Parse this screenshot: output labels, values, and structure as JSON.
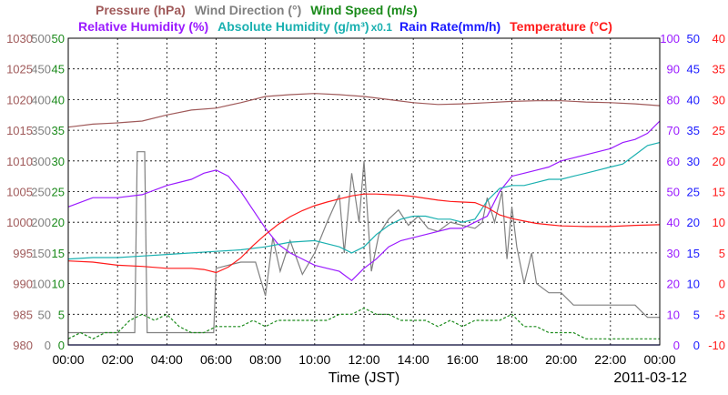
{
  "chart_data": {
    "type": "line",
    "date_label": "2011-03-12",
    "xlabel": "Time (JST)",
    "x_ticks": [
      "00:00",
      "02:00",
      "04:00",
      "06:00",
      "08:00",
      "10:00",
      "12:00",
      "14:00",
      "16:00",
      "18:00",
      "20:00",
      "22:00",
      "00:00"
    ],
    "x_range_hours": [
      0,
      24
    ],
    "legend_row1": [
      {
        "id": "pressure",
        "text": "Pressure (hPa)",
        "color": "#a05a5a"
      },
      {
        "id": "wdir",
        "text": "Wind Direction (°)",
        "color": "#808080"
      },
      {
        "id": "wspd",
        "text": "Wind Speed (m/s)",
        "color": "#1a8a1a"
      }
    ],
    "legend_row2": [
      {
        "id": "rh",
        "text": "Relative Humidity (%)",
        "color": "#9a1aff"
      },
      {
        "id": "ah",
        "text": "Absolute Humidity (g/m³)",
        "color": "#1ab0b0",
        "note": "x0.1"
      },
      {
        "id": "rain",
        "text": "Rain Rate(mm/h)",
        "color": "#1a1aff"
      },
      {
        "id": "temp",
        "text": "Temperature (°C)",
        "color": "#ff1a1a"
      }
    ],
    "axes": [
      {
        "id": "pressure",
        "side": "left",
        "color": "#a05a5a",
        "range": [
          980,
          1030
        ],
        "ticks": [
          "980",
          "985",
          "990",
          "995",
          "1000",
          "1005",
          "1010",
          "1015",
          "1020",
          "1025",
          "1030"
        ]
      },
      {
        "id": "wdir",
        "side": "left",
        "color": "#808080",
        "range": [
          0,
          500
        ],
        "ticks": [
          "0",
          "50",
          "100",
          "150",
          "200",
          "250",
          "300",
          "350",
          "400",
          "450",
          "500"
        ]
      },
      {
        "id": "wspd",
        "side": "left",
        "color": "#1a8a1a",
        "range": [
          0,
          50
        ],
        "ticks": [
          "0",
          "5",
          "10",
          "15",
          "20",
          "25",
          "30",
          "35",
          "40",
          "45",
          "50"
        ]
      },
      {
        "id": "rh",
        "side": "right",
        "color": "#9a1aff",
        "range": [
          0,
          100
        ],
        "ticks": [
          "0",
          "10",
          "20",
          "30",
          "40",
          "50",
          "60",
          "70",
          "80",
          "90",
          "100"
        ]
      },
      {
        "id": "rain",
        "side": "right",
        "color": "#1a1aff",
        "range": [
          0,
          50
        ],
        "ticks": [
          "0",
          "5",
          "10",
          "15",
          "20",
          "25",
          "30",
          "35",
          "40",
          "45",
          "50"
        ]
      },
      {
        "id": "temp",
        "side": "right",
        "color": "#ff1a1a",
        "range": [
          -10,
          40
        ],
        "ticks": [
          "-10",
          "-5",
          "0",
          "5",
          "10",
          "15",
          "20",
          "25",
          "30",
          "35",
          "40"
        ]
      }
    ],
    "series": [
      {
        "name": "Pressure",
        "axis": "pressure",
        "color": "#a05a5a",
        "x": [
          0,
          1,
          2,
          3,
          4,
          5,
          6,
          7,
          8,
          9,
          10,
          11,
          12,
          13,
          14,
          15,
          16,
          17,
          18,
          19,
          20,
          21,
          22,
          23,
          24
        ],
        "values": [
          1015.5,
          1016,
          1016.2,
          1016.5,
          1017.5,
          1018.3,
          1018.6,
          1019.5,
          1020.5,
          1020.8,
          1021,
          1020.8,
          1020.5,
          1020,
          1019.5,
          1019.2,
          1019.3,
          1019.5,
          1019.7,
          1019.8,
          1019.8,
          1019.6,
          1019.5,
          1019.3,
          1019
        ]
      },
      {
        "name": "Wind Direction",
        "axis": "wdir",
        "color": "#808080",
        "x": [
          0,
          1,
          2,
          2.7,
          2.8,
          3.1,
          3.2,
          4,
          5,
          5.9,
          6,
          7,
          7.6,
          8,
          8.3,
          8.6,
          9,
          9.5,
          10,
          10.5,
          11,
          11.2,
          11.5,
          11.8,
          12,
          12.3,
          12.6,
          13,
          13.4,
          13.8,
          14.2,
          14.6,
          15,
          15.5,
          16,
          16.5,
          16.8,
          17,
          17.3,
          17.6,
          17.8,
          18,
          18.2,
          18.5,
          18.8,
          19,
          19.5,
          20,
          20.5,
          21,
          21.5,
          22,
          22.5,
          23,
          23.5,
          24
        ],
        "values": [
          20,
          20,
          20,
          20,
          315,
          315,
          20,
          20,
          20,
          20,
          125,
          135,
          135,
          80,
          175,
          120,
          170,
          115,
          150,
          200,
          245,
          150,
          280,
          200,
          300,
          120,
          180,
          205,
          220,
          195,
          210,
          190,
          185,
          200,
          195,
          190,
          200,
          240,
          200,
          250,
          140,
          225,
          160,
          100,
          150,
          100,
          85,
          85,
          65,
          65,
          65,
          65,
          65,
          65,
          45,
          45
        ]
      },
      {
        "name": "Wind Speed",
        "axis": "wspd",
        "color": "#1a8a1a",
        "x": [
          0,
          0.5,
          1,
          1.5,
          2,
          2.5,
          3,
          3.5,
          4,
          4.5,
          5,
          5.5,
          6,
          6.5,
          7,
          7.5,
          8,
          8.5,
          9,
          9.5,
          10,
          10.5,
          11,
          11.5,
          12,
          12.5,
          13,
          13.5,
          14,
          14.5,
          15,
          15.5,
          16,
          16.5,
          17,
          17.5,
          18,
          18.5,
          19,
          19.5,
          20,
          20.5,
          21,
          21.5,
          22,
          22.5,
          23,
          23.5,
          24
        ],
        "values": [
          1,
          2,
          1,
          2,
          2,
          4,
          5,
          4,
          5,
          3,
          2,
          2,
          3,
          3,
          3,
          4,
          3,
          4,
          4,
          4,
          4,
          4,
          5,
          5,
          6,
          5,
          5,
          4,
          4,
          4,
          3,
          4,
          3,
          4,
          4,
          4,
          5,
          3,
          3,
          2,
          2,
          2,
          1,
          1,
          1,
          1,
          1,
          1,
          1
        ]
      },
      {
        "name": "Relative Humidity",
        "axis": "rh",
        "color": "#9a1aff",
        "x": [
          0,
          1,
          2,
          3,
          4,
          5,
          5.5,
          6,
          6.5,
          7,
          7.5,
          8,
          8.5,
          9,
          9.5,
          10,
          10.5,
          11,
          11.5,
          12,
          12.5,
          13,
          13.5,
          14,
          14.5,
          15,
          15.5,
          16,
          16.5,
          17,
          17.5,
          18,
          18.5,
          19,
          19.5,
          20,
          20.5,
          21,
          21.5,
          22,
          22.5,
          23,
          23.5,
          24
        ],
        "values": [
          45,
          48,
          48,
          49,
          52,
          54,
          56,
          57,
          55,
          50,
          44,
          38,
          33,
          30,
          28,
          26,
          25,
          24,
          21,
          25,
          28,
          32,
          34,
          35,
          36,
          37,
          38,
          38,
          40,
          42,
          50,
          55,
          56,
          57,
          58,
          60,
          61,
          62,
          63,
          64,
          66,
          67,
          69,
          73
        ]
      },
      {
        "name": "Absolute Humidity x0.1",
        "axis": "rh",
        "color": "#1ab0b0",
        "x": [
          0,
          1,
          2,
          3,
          4,
          5,
          6,
          7,
          8,
          9,
          10,
          10.5,
          11,
          11.5,
          12,
          12.5,
          13,
          13.5,
          14,
          14.5,
          15,
          15.5,
          16,
          16.5,
          17,
          17.5,
          18,
          18.5,
          19,
          19.5,
          20,
          20.5,
          21,
          21.5,
          22,
          22.5,
          23,
          23.5,
          24
        ],
        "values": [
          28,
          28.5,
          28.5,
          29,
          29.5,
          30,
          30.5,
          31,
          32,
          33.5,
          34,
          33,
          32,
          30,
          32,
          36,
          39,
          41,
          42,
          42,
          41,
          41,
          40,
          41,
          47,
          51,
          52,
          52,
          53,
          54,
          54,
          55,
          56,
          57,
          58,
          59,
          62,
          65,
          66
        ]
      },
      {
        "name": "Rain Rate",
        "axis": "rain",
        "color": "#1a1aff",
        "x": [
          0,
          24
        ],
        "values": [
          0,
          0
        ]
      },
      {
        "name": "Temperature",
        "axis": "temp",
        "color": "#ff1a1a",
        "x": [
          0,
          1,
          2,
          3,
          4,
          5,
          5.5,
          6,
          6.5,
          7,
          7.5,
          8,
          8.5,
          9,
          9.5,
          10,
          10.5,
          11,
          11.5,
          12,
          12.5,
          13,
          13.5,
          14,
          14.5,
          15,
          15.5,
          16,
          16.5,
          17,
          17.5,
          18,
          18.5,
          19,
          19.5,
          20,
          21,
          22,
          23,
          24
        ],
        "values": [
          3.7,
          3.5,
          3.0,
          2.8,
          2.5,
          2.5,
          2.3,
          1.8,
          2.7,
          4.2,
          6.2,
          8.0,
          9.6,
          10.9,
          11.9,
          12.7,
          13.3,
          13.8,
          14.3,
          14.6,
          14.6,
          14.5,
          14.4,
          14.2,
          13.9,
          13.6,
          13.4,
          13.3,
          13.2,
          12.4,
          11.2,
          10.6,
          10.2,
          9.8,
          9.6,
          9.4,
          9.3,
          9.3,
          9.5,
          9.6
        ]
      }
    ]
  }
}
